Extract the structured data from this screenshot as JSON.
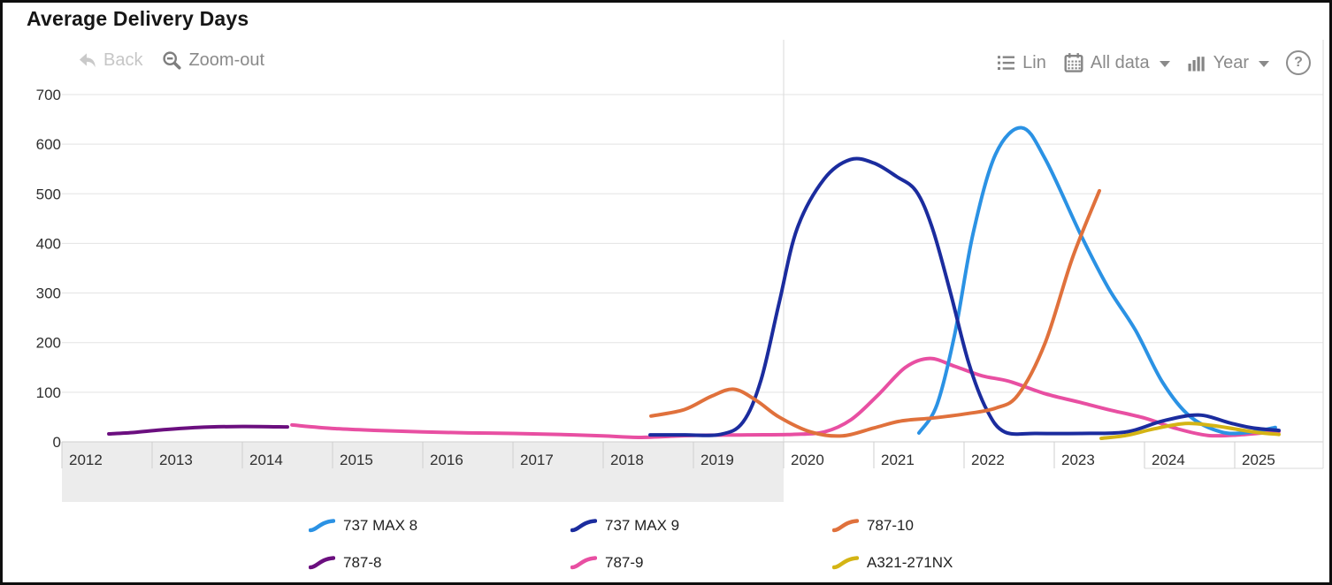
{
  "title": "Average Delivery Days",
  "toolbar": {
    "back_label": "Back",
    "zoom_out_label": "Zoom-out",
    "lin_label": "Lin",
    "all_data_label": "All data",
    "year_label": "Year",
    "help_label": "?",
    "icons": {
      "back": "reply-arrow",
      "zoom_out": "magnifier-minus",
      "lin": "bulleted-list",
      "all_data": "calendar",
      "year": "bar-columns",
      "help": "question-circle"
    }
  },
  "colors": {
    "grid": "#e3e3e3",
    "axis": "#cfcfcf",
    "band": "#ececec",
    "marker_line": "#dadada",
    "axis_text": "#2f2f2f",
    "toolbar_text": "#8a8a8a",
    "disabled_text": "#c6c6c6",
    "title_text": "#161616"
  },
  "chart_data": {
    "type": "line",
    "title": "Average Delivery Days",
    "xlabel": "",
    "ylabel": "",
    "xlim": [
      2012,
      2026
    ],
    "ylim": [
      0,
      700
    ],
    "y_ticks": [
      0,
      100,
      200,
      300,
      400,
      500,
      600,
      700
    ],
    "x_ticks": [
      2012,
      2013,
      2014,
      2015,
      2016,
      2017,
      2018,
      2019,
      2020,
      2021,
      2022,
      2023,
      2024,
      2025
    ],
    "grid": true,
    "legend_position": "bottom",
    "vertical_marker_year": 2020,
    "shaded_band_year_range": [
      2012,
      2020
    ],
    "series": [
      {
        "name": "737 MAX 8",
        "color": "#2b92e4",
        "points": [
          [
            2021.5,
            18
          ],
          [
            2021.7,
            75
          ],
          [
            2021.9,
            220
          ],
          [
            2022.1,
            420
          ],
          [
            2022.35,
            580
          ],
          [
            2022.64,
            633
          ],
          [
            2022.9,
            570
          ],
          [
            2023.3,
            415
          ],
          [
            2023.6,
            310
          ],
          [
            2023.9,
            225
          ],
          [
            2024.2,
            120
          ],
          [
            2024.5,
            52
          ],
          [
            2024.85,
            20
          ],
          [
            2025.15,
            19
          ],
          [
            2025.45,
            29
          ]
        ]
      },
      {
        "name": "737 MAX 9",
        "color": "#1b2c9e",
        "points": [
          [
            2018.52,
            14
          ],
          [
            2018.9,
            14
          ],
          [
            2019.3,
            15
          ],
          [
            2019.55,
            40
          ],
          [
            2019.75,
            125
          ],
          [
            2019.95,
            280
          ],
          [
            2020.15,
            430
          ],
          [
            2020.45,
            530
          ],
          [
            2020.74,
            569
          ],
          [
            2021.0,
            562
          ],
          [
            2021.25,
            535
          ],
          [
            2021.47,
            505
          ],
          [
            2021.65,
            430
          ],
          [
            2021.85,
            300
          ],
          [
            2022.05,
            160
          ],
          [
            2022.25,
            65
          ],
          [
            2022.45,
            20
          ],
          [
            2022.8,
            17
          ],
          [
            2023.3,
            17
          ],
          [
            2023.8,
            20
          ],
          [
            2024.2,
            42
          ],
          [
            2024.6,
            54
          ],
          [
            2024.95,
            38
          ],
          [
            2025.2,
            28
          ],
          [
            2025.49,
            23
          ]
        ]
      },
      {
        "name": "787-10",
        "color": "#e0713c",
        "points": [
          [
            2018.53,
            52
          ],
          [
            2018.9,
            65
          ],
          [
            2019.2,
            92
          ],
          [
            2019.45,
            106
          ],
          [
            2019.7,
            83
          ],
          [
            2019.95,
            50
          ],
          [
            2020.3,
            20
          ],
          [
            2020.65,
            12
          ],
          [
            2021.0,
            28
          ],
          [
            2021.3,
            42
          ],
          [
            2021.65,
            48
          ],
          [
            2022.0,
            56
          ],
          [
            2022.35,
            68
          ],
          [
            2022.6,
            95
          ],
          [
            2022.9,
            200
          ],
          [
            2023.2,
            370
          ],
          [
            2023.5,
            506
          ]
        ]
      },
      {
        "name": "787-8",
        "color": "#6b0f7f",
        "points": [
          [
            2012.52,
            16
          ],
          [
            2012.8,
            19
          ],
          [
            2013.1,
            24
          ],
          [
            2013.5,
            29
          ],
          [
            2014.0,
            31
          ],
          [
            2014.5,
            30
          ]
        ]
      },
      {
        "name": "787-9",
        "color": "#e84fa2",
        "points": [
          [
            2014.55,
            34
          ],
          [
            2015.0,
            27
          ],
          [
            2015.5,
            23
          ],
          [
            2016.0,
            20
          ],
          [
            2016.5,
            18
          ],
          [
            2017.0,
            17
          ],
          [
            2017.5,
            15
          ],
          [
            2018.0,
            12
          ],
          [
            2018.4,
            9
          ],
          [
            2019.0,
            13
          ],
          [
            2019.6,
            14
          ],
          [
            2020.1,
            15
          ],
          [
            2020.45,
            20
          ],
          [
            2020.75,
            45
          ],
          [
            2021.05,
            95
          ],
          [
            2021.35,
            150
          ],
          [
            2021.62,
            168
          ],
          [
            2021.9,
            152
          ],
          [
            2022.2,
            133
          ],
          [
            2022.5,
            122
          ],
          [
            2022.9,
            97
          ],
          [
            2023.3,
            79
          ],
          [
            2023.6,
            65
          ],
          [
            2024.0,
            48
          ],
          [
            2024.35,
            27
          ],
          [
            2024.7,
            13
          ],
          [
            2025.05,
            14
          ],
          [
            2025.49,
            21
          ]
        ]
      },
      {
        "name": "A321-271NX",
        "color": "#d4b414",
        "points": [
          [
            2023.52,
            7
          ],
          [
            2023.8,
            13
          ],
          [
            2024.1,
            26
          ],
          [
            2024.45,
            37
          ],
          [
            2024.75,
            33
          ],
          [
            2025.0,
            26
          ],
          [
            2025.25,
            19
          ],
          [
            2025.49,
            15
          ]
        ]
      }
    ]
  }
}
